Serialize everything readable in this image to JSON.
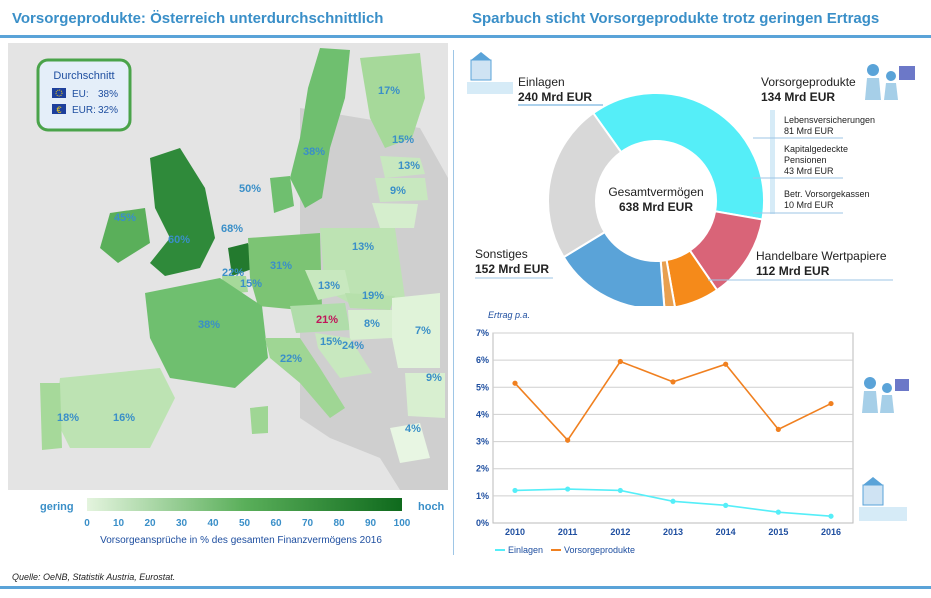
{
  "left_title": "Vorsorgeprodukte: Österreich unterdurchschnittlich",
  "right_title": "Sparbuch sticht Vorsorgeprodukte trotz geringen Ertrags",
  "colors": {
    "title": "#3a8fc8",
    "rule": "#5aa3d8",
    "map_high": "#1e7a2c",
    "map_low": "#def2d8",
    "austria_label": "#c0155a",
    "einlagen": "#55eef8",
    "vorsorge": "#f08020",
    "lebensvers": "#d96478",
    "kapital": "#f58a1a",
    "betr": "#e8a050",
    "handel": "#5aa3d8",
    "sonstiges": "#d8d8d8"
  },
  "map": {
    "average_box": {
      "title": "Durchschnitt",
      "rows": [
        {
          "flag": "eu-flag-icon",
          "label": "EU:",
          "value": "38%"
        },
        {
          "flag": "euro-icon",
          "label": "EUR:",
          "value": "32%"
        }
      ]
    },
    "country_labels": [
      "17%",
      "15%",
      "13%",
      "9%",
      "38%",
      "50%",
      "45%",
      "60%",
      "68%",
      "22%",
      "15%",
      "31%",
      "13%",
      "13%",
      "19%",
      "21%",
      "8%",
      "38%",
      "15%",
      "24%",
      "7%",
      "22%",
      "9%",
      "18%",
      "16%",
      "4%"
    ],
    "legend": {
      "low_label": "gering",
      "high_label": "hoch",
      "ticks": [
        "0",
        "10",
        "20",
        "30",
        "40",
        "50",
        "60",
        "70",
        "80",
        "90",
        "100"
      ],
      "caption": "Vorsorgeansprüche in % des gesamten Finanzvermögens 2016"
    }
  },
  "donut": {
    "center_label": "Gesamtvermögen",
    "center_value": "638 Mrd EUR",
    "total": 638,
    "segments": [
      {
        "name": "Einlagen",
        "value": 240,
        "label": "240 Mrd EUR"
      },
      {
        "name": "Lebensversicherungen",
        "value": 81,
        "label": "81 Mrd EUR"
      },
      {
        "name": "Kapitalgedeckte Pensionen",
        "value": 43,
        "label": "43 Mrd EUR"
      },
      {
        "name": "Betr. Vorsorgekassen",
        "value": 10,
        "label": "10 Mrd EUR"
      },
      {
        "name": "Handelbare Wertpapiere",
        "value": 112,
        "label": "112 Mrd EUR"
      },
      {
        "name": "Sonstiges",
        "value": 152,
        "label": "152 Mrd EUR"
      }
    ],
    "vorsorge_group": {
      "name": "Vorsorgeprodukte",
      "label": "134 Mrd EUR"
    }
  },
  "chart_data": {
    "type": "line",
    "ylabel": "Ertrag p.a.",
    "x": [
      "2010",
      "2011",
      "2012",
      "2013",
      "2014",
      "2015",
      "2016"
    ],
    "ylim": [
      0,
      7
    ],
    "y_ticks": [
      "0%",
      "1%",
      "2%",
      "3%",
      "4%",
      "5%",
      "6%",
      "7%"
    ],
    "grid": true,
    "legend": "bottom-left",
    "series": [
      {
        "name": "Einlagen",
        "values": [
          1.2,
          1.25,
          1.2,
          0.8,
          0.65,
          0.4,
          0.25
        ]
      },
      {
        "name": "Vorsorgeprodukte",
        "values": [
          5.15,
          3.05,
          5.95,
          5.2,
          5.85,
          3.45,
          4.4
        ]
      }
    ]
  },
  "source": "Quelle: OeNB, Statistik Austria, Eurostat."
}
